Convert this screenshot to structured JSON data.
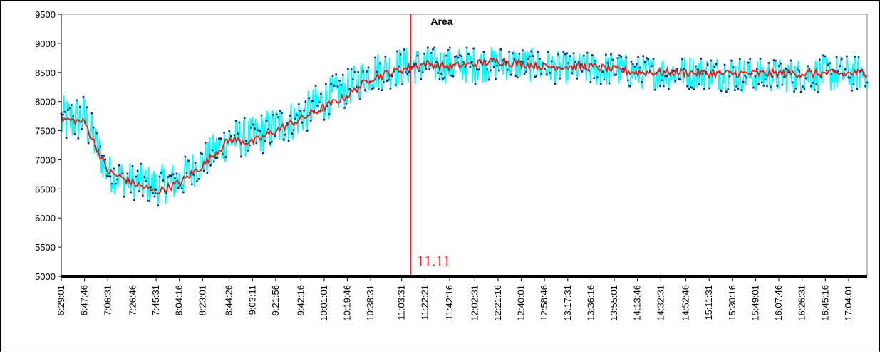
{
  "chart_data": {
    "type": "line",
    "title": "Area",
    "xlabel": "",
    "ylabel": "",
    "ylim": [
      5000,
      9500
    ],
    "yticks": [
      5000,
      5500,
      6000,
      6500,
      7000,
      7500,
      8000,
      8500,
      9000,
      9500
    ],
    "xlim": [
      "6:29:01",
      "17:19:00"
    ],
    "xticks": [
      "6:29:01",
      "6:47:46",
      "7:06:31",
      "7:26:46",
      "7:45:31",
      "8:04:16",
      "8:23:01",
      "8:44:26",
      "9:03:11",
      "9:21:56",
      "9:42:16",
      "10:01:01",
      "10:19:46",
      "10:38:31",
      "11:03:31",
      "11:22:21",
      "11:42:16",
      "12:02:31",
      "12:21:16",
      "12:40:01",
      "12:58:46",
      "13:17:31",
      "13:36:16",
      "13:55:01",
      "14:13:46",
      "14:32:31",
      "14:52:46",
      "15:11:31",
      "15:30:16",
      "15:49:01",
      "16:07:46",
      "16:26:31",
      "16:45:16",
      "17:04:01"
    ],
    "grid": false,
    "legend": "none",
    "series": [
      {
        "kind": "raw-markers",
        "color": "#00ffff",
        "marker_color": "#002d7a",
        "x": [
          "6:29:01",
          "6:47:46",
          "7:06:31",
          "7:26:46",
          "7:45:31",
          "8:04:16",
          "8:23:01",
          "8:44:26",
          "9:03:11",
          "9:21:56",
          "9:42:16",
          "10:01:01",
          "10:19:46",
          "10:38:31",
          "11:03:31",
          "11:22:21",
          "11:42:16",
          "12:02:31",
          "12:21:16",
          "12:40:01",
          "12:58:46",
          "13:17:31",
          "13:36:16",
          "13:55:01",
          "14:13:46",
          "14:32:31",
          "14:52:46",
          "15:11:31",
          "15:30:16",
          "15:49:01",
          "16:07:46",
          "16:26:31",
          "16:45:16",
          "17:04:01",
          "17:19:00"
        ],
        "band_low": [
          7200,
          7300,
          6450,
          6300,
          6200,
          6300,
          6650,
          7000,
          7050,
          7150,
          7400,
          7650,
          7900,
          8150,
          8250,
          8300,
          8300,
          8300,
          8350,
          8350,
          8300,
          8300,
          8250,
          8250,
          8200,
          8200,
          8200,
          8200,
          8150,
          8150,
          8150,
          8150,
          8150,
          8150,
          8200
        ],
        "band_high": [
          8100,
          8150,
          7100,
          6950,
          6900,
          7000,
          7300,
          7700,
          7750,
          7950,
          8100,
          8400,
          8550,
          8850,
          8950,
          8950,
          8950,
          8950,
          8950,
          8950,
          8900,
          8850,
          8850,
          8850,
          8800,
          8800,
          8800,
          8800,
          8800,
          8750,
          8750,
          8750,
          8800,
          8800,
          8800
        ]
      },
      {
        "kind": "moving-average",
        "color": "#e31a1c",
        "x": [
          "6:29:01",
          "6:47:46",
          "7:06:31",
          "7:26:46",
          "7:45:31",
          "8:04:16",
          "8:23:01",
          "8:44:26",
          "9:03:11",
          "9:21:56",
          "9:42:16",
          "10:01:01",
          "10:19:46",
          "10:38:31",
          "11:03:31",
          "11:22:21",
          "11:42:16",
          "12:02:31",
          "12:21:16",
          "12:40:01",
          "12:58:46",
          "13:17:31",
          "13:36:16",
          "13:55:01",
          "14:13:46",
          "14:32:31",
          "14:52:46",
          "15:11:31",
          "15:30:16",
          "15:49:01",
          "16:07:46",
          "16:26:31",
          "16:45:16",
          "17:04:01",
          "17:19:00"
        ],
        "values": [
          7700,
          7650,
          6800,
          6600,
          6450,
          6600,
          6900,
          7350,
          7300,
          7500,
          7700,
          7900,
          8100,
          8400,
          8550,
          8650,
          8600,
          8650,
          8700,
          8650,
          8600,
          8600,
          8600,
          8550,
          8500,
          8500,
          8500,
          8480,
          8480,
          8480,
          8480,
          8480,
          8480,
          8480,
          8500
        ]
      }
    ],
    "annotations": [
      {
        "type": "vline",
        "x": "11:11:00",
        "label": "11.11",
        "color": "#e31a1c"
      }
    ]
  }
}
